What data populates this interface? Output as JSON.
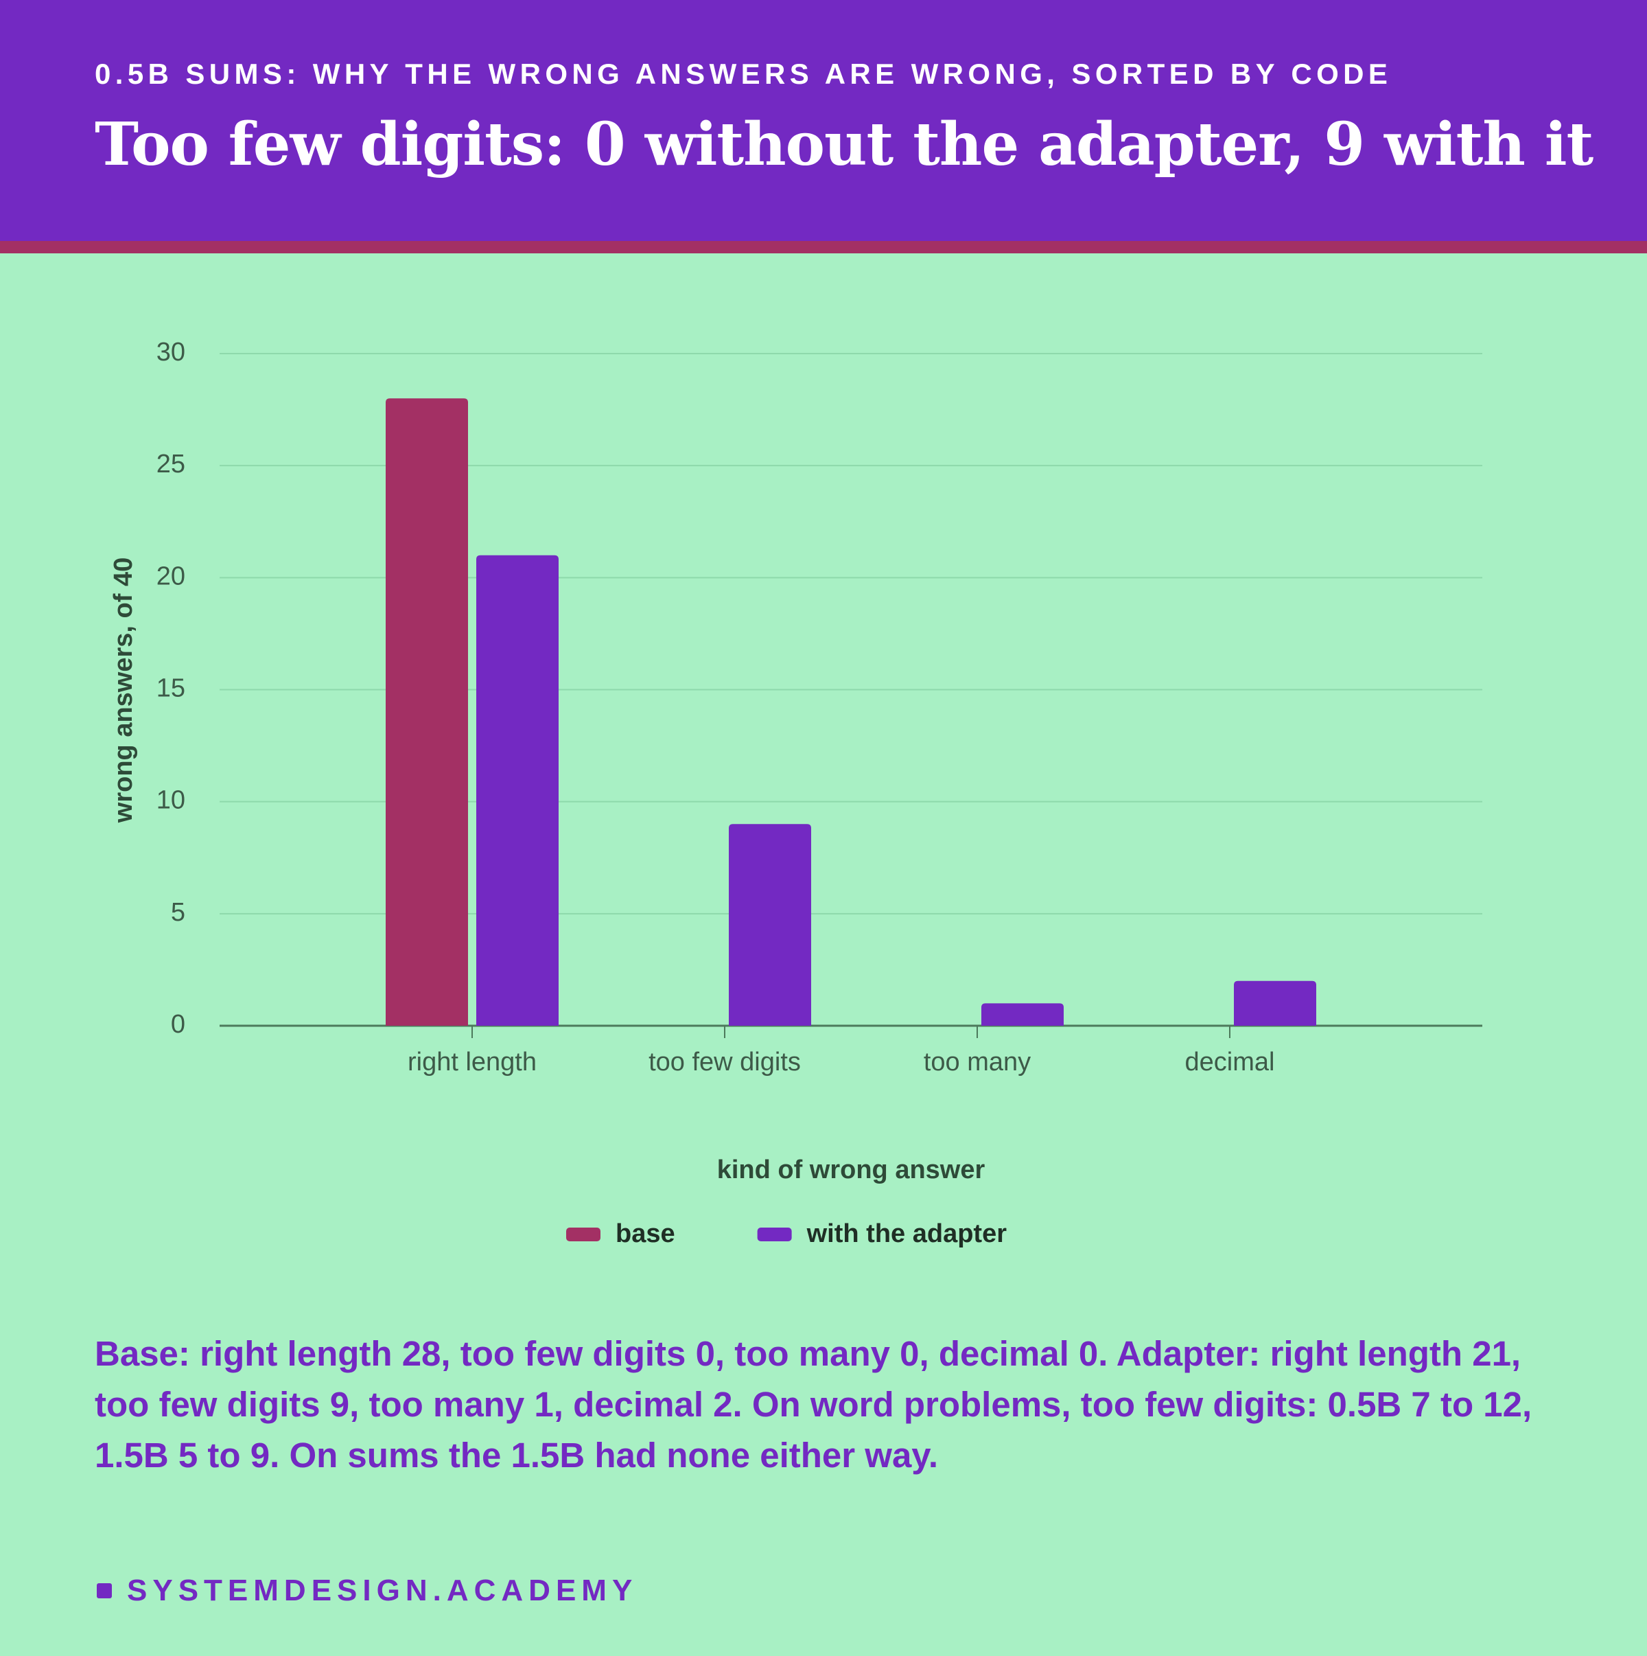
{
  "chart_data": {
    "type": "bar",
    "kicker": "0.5B SUMS: WHY THE WRONG ANSWERS ARE WRONG, SORTED BY CODE",
    "title": "Too few digits: 0 without the adapter, 9 with it",
    "x_label": "kind of wrong answer",
    "y_label": "wrong answers, of 40",
    "categories": [
      "right length",
      "too few digits",
      "too many",
      "decimal"
    ],
    "series": [
      {
        "name": "base",
        "color": "#a33064",
        "values": [
          28,
          0,
          0,
          0
        ]
      },
      {
        "name": "with the adapter",
        "color": "#7329c2",
        "values": [
          21,
          9,
          1,
          2
        ]
      }
    ],
    "ylim": [
      0,
      30
    ],
    "yticks": [
      0,
      5,
      10,
      15,
      20,
      25,
      30
    ],
    "grid": true,
    "note": "Base: right length 28, too few digits 0, too many 0, decimal 0. Adapter: right length 21, too few digits 9, too many 1, decimal 2. On word problems, too few digits: 0.5B 7 to 12, 1.5B 5 to 9. On sums the 1.5B had none either way.",
    "footer": "SYSTEMDESIGN.ACADEMY"
  }
}
